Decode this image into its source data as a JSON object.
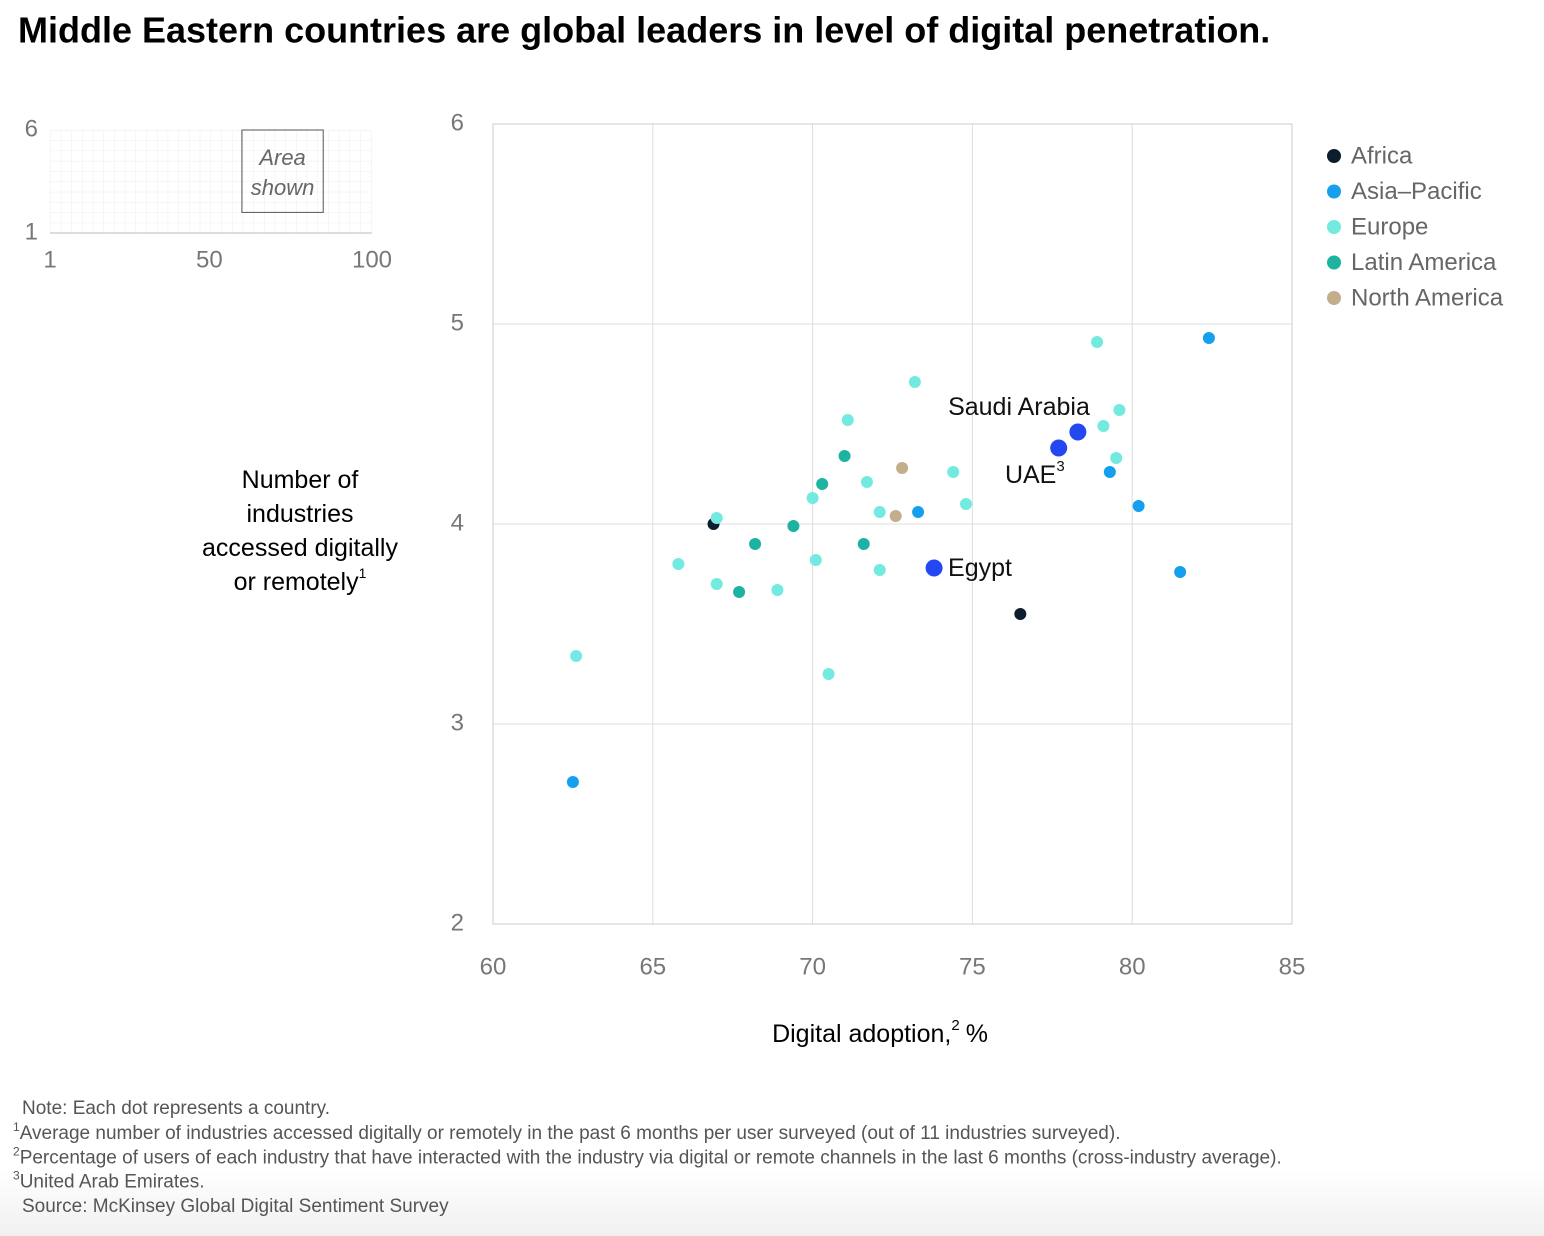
{
  "chart_data": {
    "type": "scatter",
    "title": "Middle Eastern countries are global leaders in level of digital penetration.",
    "xlabel": "Digital adoption,",
    "xlabel_note": "2",
    "xlabel_unit": "%",
    "ylabel": [
      "Number of",
      "industries",
      "accessed digitally",
      "or remotely"
    ],
    "ylabel_note": "1",
    "xlim": [
      60,
      85
    ],
    "ylim": [
      2,
      6
    ],
    "xticks": [
      60,
      65,
      70,
      75,
      80,
      85
    ],
    "yticks": [
      2,
      3,
      4,
      5,
      6
    ],
    "grid": true,
    "legend": "top-right",
    "series": [
      {
        "name": "Africa",
        "color": "#0c1e2e",
        "x": [
          66.9,
          76.5
        ],
        "values": [
          4.0,
          3.55
        ]
      },
      {
        "name": "Asia–Pacific",
        "color": "#14a0ee",
        "x": [
          62.5,
          73.3,
          79.3,
          80.2,
          81.5,
          82.4
        ],
        "values": [
          2.71,
          4.06,
          4.26,
          4.09,
          3.76,
          4.93
        ]
      },
      {
        "name": "Europe",
        "color": "#72eadf",
        "x": [
          62.6,
          65.8,
          67.0,
          67.0,
          68.9,
          70.0,
          70.1,
          70.5,
          71.1,
          71.7,
          72.1,
          72.1,
          73.2,
          74.4,
          74.8,
          78.9,
          79.1,
          79.5,
          79.6
        ],
        "values": [
          3.34,
          3.8,
          4.03,
          3.7,
          3.67,
          4.13,
          3.82,
          3.25,
          4.52,
          4.21,
          4.06,
          3.77,
          4.71,
          4.26,
          4.1,
          4.91,
          4.49,
          4.33,
          4.57
        ]
      },
      {
        "name": "Latin America",
        "color": "#1cb3a0",
        "x": [
          67.7,
          68.2,
          69.4,
          70.3,
          71.0,
          71.6
        ],
        "values": [
          3.66,
          3.9,
          3.99,
          4.2,
          4.34,
          3.9
        ]
      },
      {
        "name": "North America",
        "color": "#c3ad8b",
        "x": [
          72.8,
          72.6
        ],
        "values": [
          4.28,
          4.04
        ]
      }
    ],
    "labeled_points": [
      {
        "label": "Saudi Arabia",
        "color": "#2348f2",
        "x": 78.3,
        "y": 4.46
      },
      {
        "label": "UAE",
        "note": "3",
        "color": "#2348f2",
        "x": 77.7,
        "y": 4.38
      },
      {
        "label": "Egypt",
        "color": "#2348f2",
        "x": 73.8,
        "y": 3.78
      }
    ],
    "inset": {
      "xlim": [
        1,
        100
      ],
      "ylim": [
        1,
        6
      ],
      "xticks": [
        1,
        50,
        100
      ],
      "yticks": [
        1,
        6
      ],
      "label": [
        "Area",
        "shown"
      ]
    }
  },
  "footer": {
    "note": "Note: Each dot represents a country.",
    "footnotes": [
      {
        "mark": "1",
        "text": "Average number of industries accessed digitally or remotely in the past 6 months per user surveyed (out of 11 industries surveyed)."
      },
      {
        "mark": "2",
        "text": "Percentage of users of each industry that have interacted with the industry via digital or remote channels in the last 6 months (cross-industry average)."
      },
      {
        "mark": "3",
        "text": "United Arab Emirates."
      }
    ],
    "source": "Source: McKinsey Global Digital Sentiment Survey"
  }
}
